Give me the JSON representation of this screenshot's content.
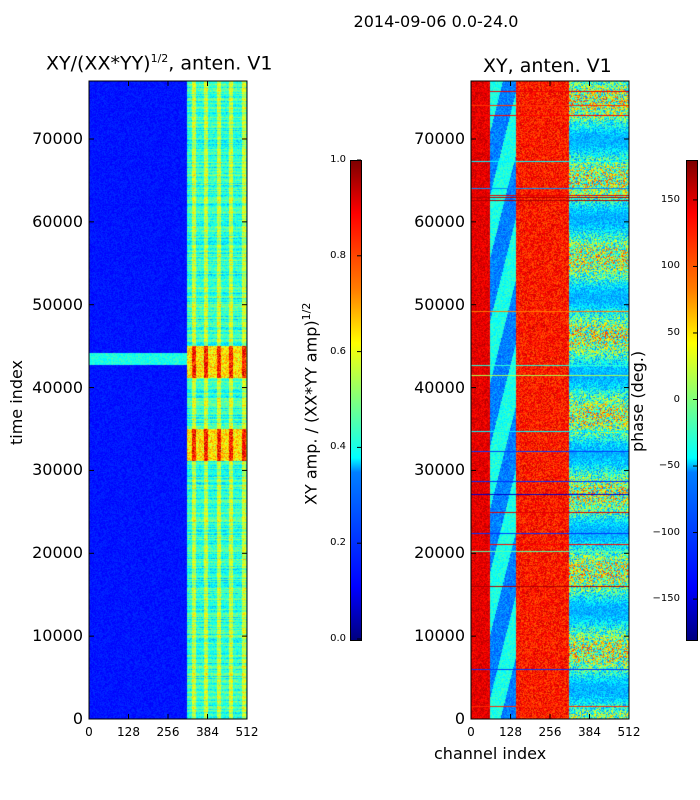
{
  "suptitle": "2014-09-06 0.0-24.0",
  "chart_data": [
    {
      "type": "heatmap",
      "title_main": "XY/(XX*YY)",
      "title_sup": "1/2",
      "title_tail": ", anten. V1",
      "xlabel": "",
      "ylabel": "time index",
      "xlim": [
        0,
        512
      ],
      "ylim": [
        0,
        77000
      ],
      "xticks": [
        0,
        128,
        256,
        384,
        512
      ],
      "yticks": [
        0,
        10000,
        20000,
        30000,
        40000,
        50000,
        60000,
        70000
      ],
      "colorbar": {
        "label_main": "XY amp. / (XX*YY amp)",
        "label_sup": "1/2",
        "range": [
          0.0,
          1.0
        ],
        "ticks": [
          "0.0",
          "0.2",
          "0.4",
          "0.6",
          "0.8",
          "1.0"
        ],
        "colormap": "jet"
      }
    },
    {
      "type": "heatmap",
      "title": "XY, anten. V1",
      "xlabel": "channel index",
      "ylabel": "",
      "xlim": [
        0,
        512
      ],
      "ylim": [
        0,
        77000
      ],
      "xticks": [
        0,
        128,
        256,
        384,
        512
      ],
      "yticks": [
        0,
        10000,
        20000,
        30000,
        40000,
        50000,
        60000,
        70000
      ],
      "colorbar": {
        "label": "phase (deg.)",
        "range": [
          -180,
          180
        ],
        "ticks": [
          "−150",
          "−100",
          "−50",
          "0",
          "50",
          "100",
          "150"
        ],
        "colormap": "jet"
      }
    }
  ]
}
